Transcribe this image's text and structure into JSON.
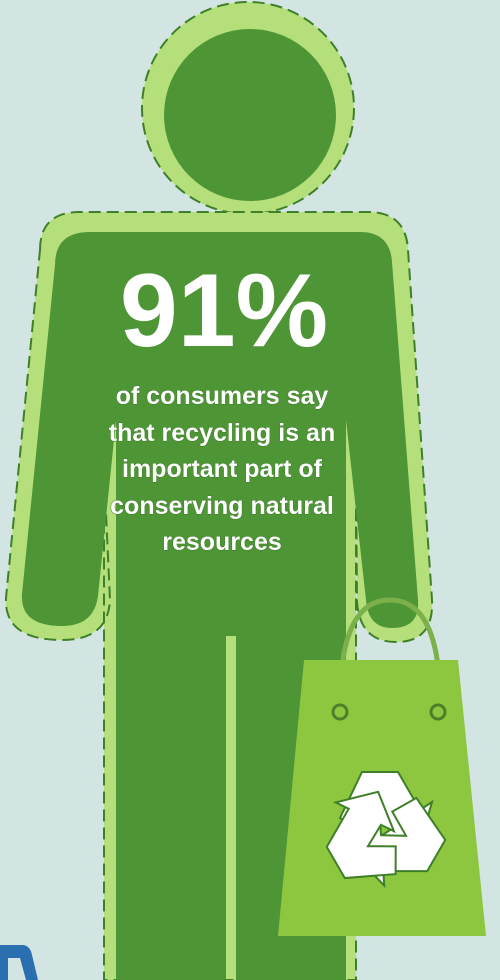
{
  "stat": "91%",
  "text_lines": [
    "of consumers say",
    "that recycling is an",
    "important part of",
    "conserving natural",
    "resources"
  ]
}
